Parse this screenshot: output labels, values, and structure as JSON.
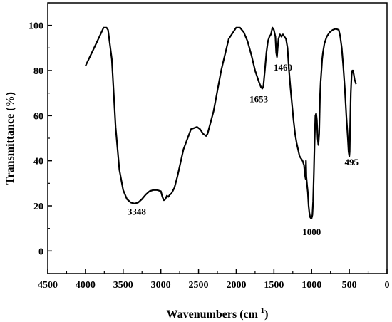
{
  "chart_data": {
    "type": "line",
    "xlabel": "Wavenumbers (cm",
    "xlabel_sup": "-1",
    "xlabel_close": ")",
    "ylabel": "Transmittance (%)",
    "xlim": [
      4500,
      0
    ],
    "ylim": [
      -10,
      110
    ],
    "x_ticks": [
      4500,
      4000,
      3500,
      3000,
      2500,
      2000,
      1500,
      1000,
      500,
      0
    ],
    "y_ticks": [
      0,
      20,
      40,
      60,
      80,
      100
    ],
    "grid": false,
    "series": [
      {
        "x": [
          4000,
          3900,
          3800,
          3760,
          3720,
          3700,
          3650,
          3600,
          3550,
          3500,
          3450,
          3400,
          3348,
          3300,
          3250,
          3200,
          3150,
          3100,
          3050,
          3000,
          2980,
          2960,
          2940,
          2920,
          2900,
          2880,
          2860,
          2820,
          2780,
          2700,
          2600,
          2520,
          2480,
          2440,
          2400,
          2380,
          2300,
          2200,
          2100,
          2000,
          1950,
          1900,
          1850,
          1800,
          1750,
          1700,
          1670,
          1653,
          1640,
          1620,
          1600,
          1580,
          1560,
          1540,
          1520,
          1500,
          1480,
          1470,
          1460,
          1450,
          1440,
          1420,
          1400,
          1380,
          1360,
          1340,
          1320,
          1300,
          1280,
          1260,
          1240,
          1220,
          1200,
          1180,
          1160,
          1140,
          1120,
          1100,
          1090,
          1080,
          1075,
          1070,
          1060,
          1050,
          1040,
          1030,
          1020,
          1010,
          1000,
          990,
          980,
          970,
          960,
          950,
          940,
          930,
          920,
          910,
          900,
          890,
          880,
          870,
          860,
          850,
          830,
          800,
          760,
          720,
          680,
          640,
          620,
          600,
          580,
          560,
          540,
          520,
          510,
          500,
          495,
          490,
          480,
          470,
          460,
          450,
          440,
          430,
          420,
          410
        ],
        "y": [
          82,
          89,
          96,
          99,
          99,
          98,
          85,
          55,
          36,
          27,
          23,
          21.5,
          21,
          21.5,
          23,
          25,
          26.5,
          27,
          27,
          26.5,
          24,
          22.5,
          23,
          24.5,
          24,
          25,
          25.5,
          28,
          33,
          45,
          54,
          55,
          54,
          52,
          51,
          52,
          62,
          80,
          94,
          99,
          99,
          97,
          93,
          87,
          80,
          75,
          72.5,
          72,
          73,
          80,
          88,
          93,
          95,
          96,
          99,
          98,
          95,
          88,
          86,
          90,
          94,
          96,
          95,
          96,
          95,
          94,
          90,
          80,
          72,
          65,
          58,
          52,
          48,
          45,
          42,
          41,
          40,
          38,
          34,
          32,
          40,
          33,
          29,
          26,
          20,
          17,
          15,
          14.5,
          14.5,
          16,
          22,
          35,
          50,
          60,
          61,
          58,
          50,
          47,
          52,
          68,
          75,
          80,
          85,
          88,
          92,
          95,
          97,
          98,
          98.5,
          98,
          95,
          90,
          82,
          72,
          60,
          50,
          44,
          42,
          44,
          55,
          70,
          78,
          80,
          80,
          78,
          76,
          75,
          74
        ]
      }
    ],
    "annotations": [
      {
        "text": "3348",
        "x": 3320,
        "y": 16
      },
      {
        "text": "1653",
        "x": 1700,
        "y": 66
      },
      {
        "text": "1460",
        "x": 1380,
        "y": 80
      },
      {
        "text": "1000",
        "x": 1000,
        "y": 7
      },
      {
        "text": "495",
        "x": 470,
        "y": 38
      }
    ]
  }
}
